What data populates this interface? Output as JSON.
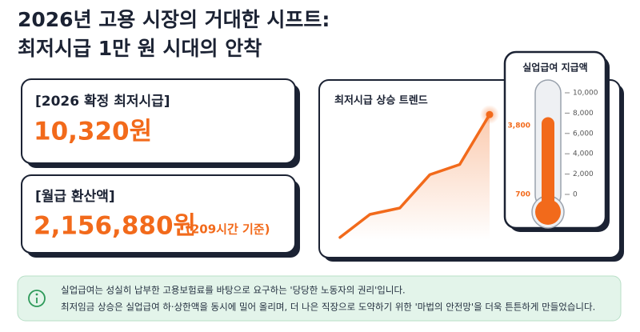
{
  "header": {
    "title_lines": [
      "2026년 고용 시장의 거대한 시프트:",
      "최저시급 1만 원 시대의 안착"
    ]
  },
  "cards": [
    {
      "label": "[2026 확정 최저시급]",
      "value": "10,320원"
    },
    {
      "label": "[월급 환산액]",
      "value": "2,156,880원",
      "note": "(209시간 기준)"
    }
  ],
  "chart_data": [
    {
      "type": "line",
      "title": "최저시급 상승 트렌드",
      "values": [
        2,
        20,
        25,
        51,
        59,
        98
      ],
      "color": "#f26a1b",
      "ylim": [
        0,
        100
      ]
    },
    {
      "type": "thermometer",
      "title": "실업급여 지급액",
      "value": 7600,
      "color": "#f26a1b",
      "ylim": [
        0,
        10000
      ],
      "yticks": [
        0,
        {
          "value": 2000,
          "label": "2,000"
        },
        {
          "value": 4000,
          "label": "4,000"
        },
        {
          "value": 6000,
          "label": "6,000"
        },
        {
          "value": 8000,
          "label": "8,000"
        },
        {
          "value": 10000,
          "label": "10,000"
        }
      ],
      "annotations": [
        "3,800",
        "700"
      ]
    }
  ],
  "info": {
    "lines": [
      "실업급여는 성실히 납부한 고용보험료를 바탕으로 요구하는 '당당한 노동자의 권리'입니다.",
      "최저임금 상승은 실업급여 하·상한액을 동시에 밀어 올리며, 더 나은 직장으로 도약하기 위한 '마법의 안전망'을 더욱 튼튼하게 만들었습니다."
    ]
  }
}
